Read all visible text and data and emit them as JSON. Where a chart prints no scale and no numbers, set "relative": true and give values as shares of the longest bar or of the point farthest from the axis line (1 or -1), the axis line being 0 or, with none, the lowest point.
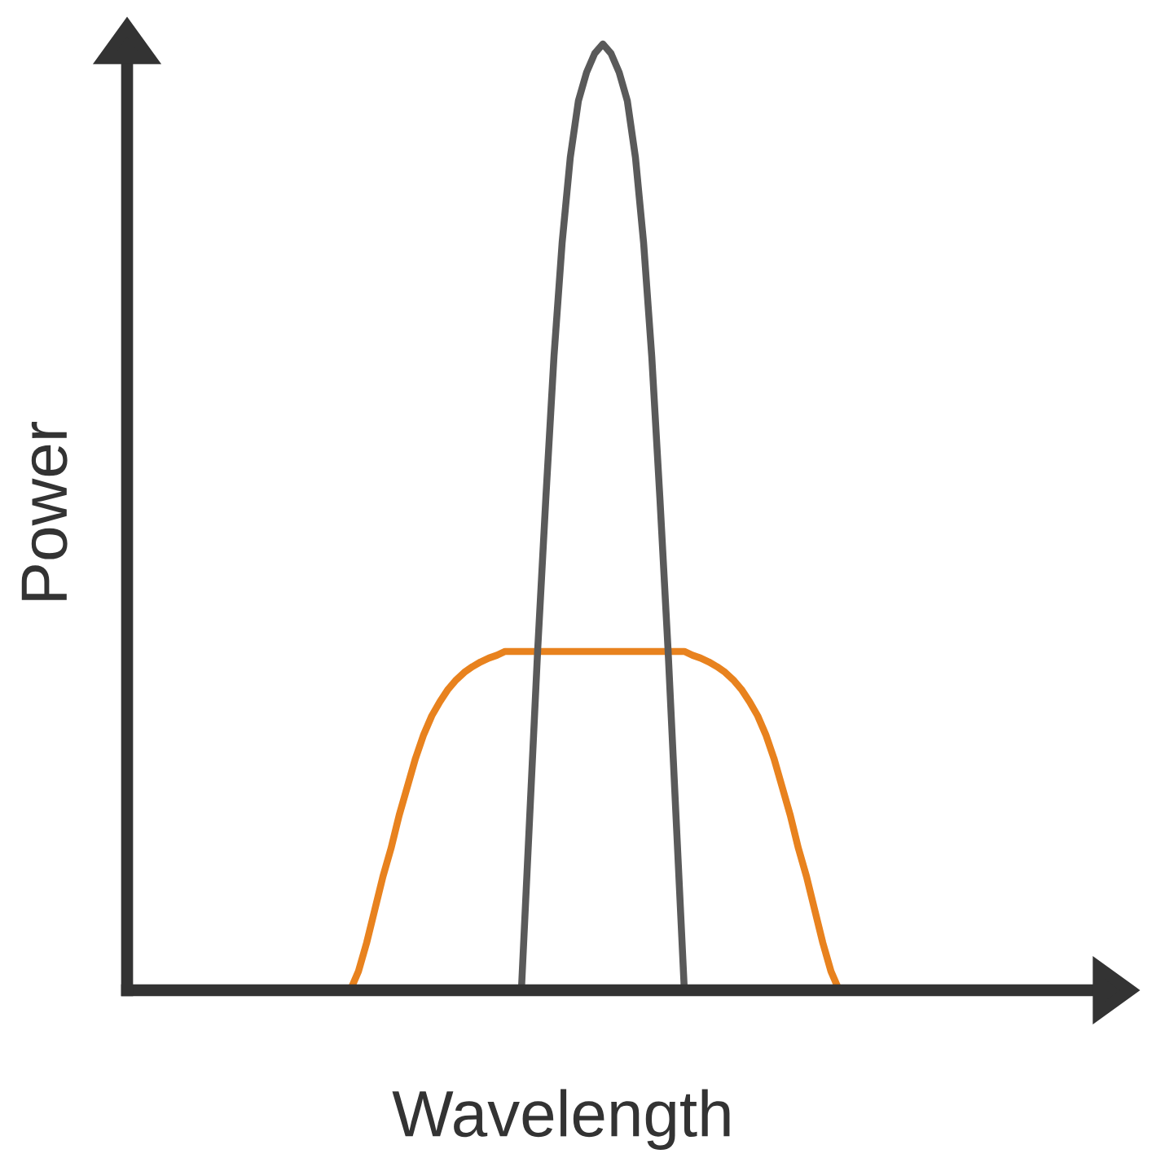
{
  "chart_data": {
    "type": "line",
    "relative": true,
    "xlabel": "Wavelength",
    "ylabel": "Power",
    "categories": [
      null,
      null,
      null,
      null,
      null,
      null,
      null,
      null,
      null,
      null,
      null,
      null,
      null,
      null,
      null,
      null,
      null,
      null,
      null,
      null,
      null,
      null,
      null,
      null,
      null,
      null,
      null,
      null,
      null,
      null,
      null,
      null,
      null,
      null,
      null,
      null,
      null,
      null,
      null,
      null,
      null,
      null,
      null,
      null,
      null,
      null,
      null,
      null,
      null,
      null,
      null,
      null,
      null,
      null,
      null,
      null,
      null,
      null,
      null,
      null,
      null
    ],
    "series": [
      {
        "color": "#e8821e",
        "values": [
          0,
          0.02,
          0.05,
          0.085,
          0.12,
          0.15,
          0.185,
          0.215,
          0.245,
          0.27,
          0.29,
          0.305,
          0.318,
          0.328,
          0.336,
          0.342,
          0.347,
          0.351,
          0.354,
          0.358,
          0.358,
          0.358,
          0.358,
          0.358,
          0.358,
          0.358,
          0.358,
          0.358,
          0.358,
          0.358,
          0.358,
          0.358,
          0.358,
          0.358,
          0.358,
          0.358,
          0.358,
          0.358,
          0.358,
          0.358,
          0.358,
          0.358,
          0.354,
          0.351,
          0.347,
          0.342,
          0.336,
          0.328,
          0.318,
          0.305,
          0.29,
          0.27,
          0.245,
          0.215,
          0.185,
          0.15,
          0.12,
          0.085,
          0.05,
          0.02,
          0
        ]
      },
      {
        "color": "#5a5a5a",
        "values": [
          null,
          null,
          null,
          null,
          null,
          null,
          null,
          null,
          null,
          null,
          null,
          null,
          null,
          null,
          null,
          null,
          null,
          null,
          null,
          null,
          null,
          0,
          0.18,
          0.36,
          0.52,
          0.67,
          0.79,
          0.88,
          0.94,
          0.97,
          0.99,
          1,
          0.99,
          0.97,
          0.94,
          0.88,
          0.79,
          0.67,
          0.52,
          0.36,
          0.18,
          0,
          null,
          null,
          null,
          null,
          null,
          null,
          null,
          null,
          null,
          null,
          null,
          null,
          null,
          null,
          null,
          null,
          null,
          null,
          null
        ]
      }
    ]
  }
}
